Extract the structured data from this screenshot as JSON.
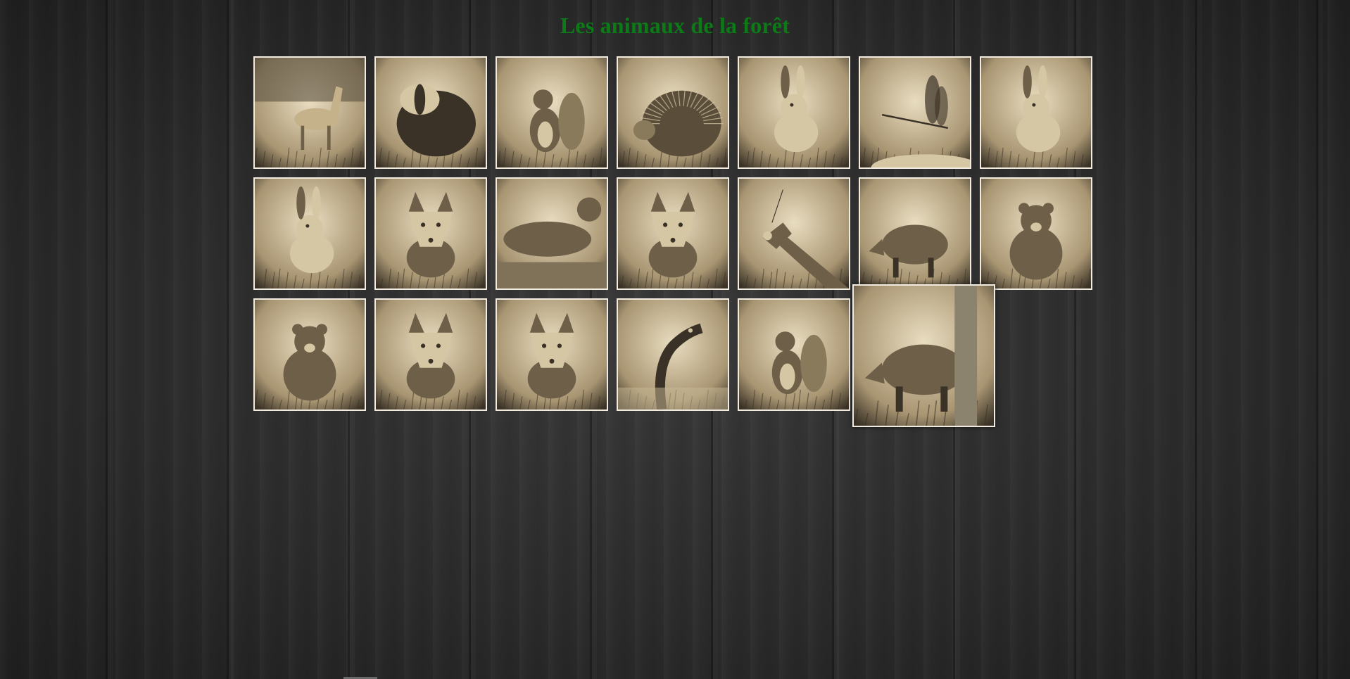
{
  "page": {
    "title": "Les animaux de la forêt"
  },
  "gallery": {
    "tone": {
      "border": "#f2ece0",
      "sepia_light": "#e9ddc0",
      "sepia_mid": "#a89572",
      "sepia_dark": "#3a3226"
    },
    "rows": [
      [
        {
          "subject": "deer-photo"
        },
        {
          "subject": "badger-photo"
        },
        {
          "subject": "squirrel-photo"
        },
        {
          "subject": "hedgehog-photo"
        },
        {
          "subject": "rabbit-photo"
        },
        {
          "subject": "dragonfly-photo"
        },
        {
          "subject": "hare-photo"
        }
      ],
      [
        {
          "subject": "rabbit-photo"
        },
        {
          "subject": "wolf-photo"
        },
        {
          "subject": "otter-photo"
        },
        {
          "subject": "lynx-photo"
        },
        {
          "subject": "mantis-photo"
        },
        {
          "subject": "young-boar-photo"
        },
        {
          "subject": "bear-cub-photo"
        }
      ],
      [
        {
          "subject": "bear-photo"
        },
        {
          "subject": "fox-cub-photo"
        },
        {
          "subject": "fox-photo"
        },
        {
          "subject": "snake-photo"
        },
        {
          "subject": "squirrel-photo"
        },
        {
          "subject": "wild-boar-photo",
          "enlarged": true
        }
      ]
    ]
  }
}
